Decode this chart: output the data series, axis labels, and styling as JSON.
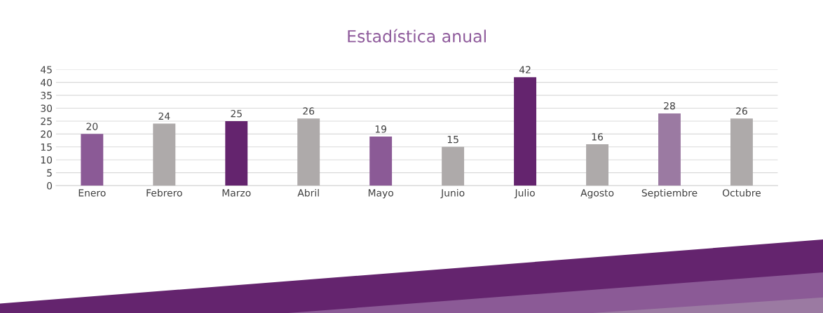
{
  "chart_data": {
    "type": "bar",
    "title": "Estadística anual",
    "categories": [
      "Enero",
      "Febrero",
      "Marzo",
      "Abril",
      "Mayo",
      "Junio",
      "Julio",
      "Agosto",
      "Septiembre",
      "Octubre"
    ],
    "values": [
      20,
      24,
      25,
      26,
      19,
      15,
      42,
      16,
      28,
      26
    ],
    "colors": [
      "#8b5a96",
      "#aeaaaa",
      "#64246e",
      "#aeaaaa",
      "#8b5a96",
      "#aeaaaa",
      "#64246e",
      "#aeaaaa",
      "#9b7aa2",
      "#aeaaaa"
    ],
    "ylim": [
      0,
      45
    ],
    "yticks": [
      0,
      5,
      10,
      15,
      20,
      25,
      30,
      35,
      40,
      45
    ],
    "grid": "y",
    "data_labels": true
  }
}
